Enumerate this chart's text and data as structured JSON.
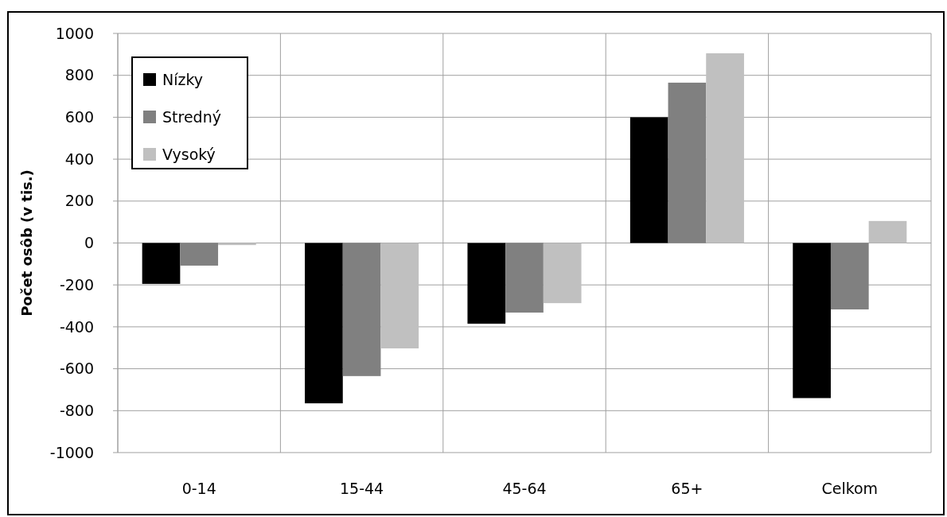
{
  "chart_data": {
    "type": "bar",
    "ylabel": "Počet osôb (v tis.)",
    "categories": [
      "0-14",
      "15-44",
      "45-64",
      "65+",
      "Celkom"
    ],
    "series": [
      {
        "name": "Nízky",
        "color": "#000000",
        "values": [
          -195,
          -765,
          -385,
          600,
          -740
        ]
      },
      {
        "name": "Stredný",
        "color": "#808080",
        "values": [
          -108,
          -635,
          -332,
          765,
          -317
        ]
      },
      {
        "name": "Vysoký",
        "color": "#c0c0c0",
        "values": [
          -10,
          -503,
          -287,
          905,
          105
        ]
      }
    ],
    "ylim": [
      -1000,
      1000
    ],
    "yticks": [
      -1000,
      -800,
      -600,
      -400,
      -200,
      0,
      200,
      400,
      600,
      800,
      1000
    ],
    "grid": true,
    "legend": "top left"
  }
}
